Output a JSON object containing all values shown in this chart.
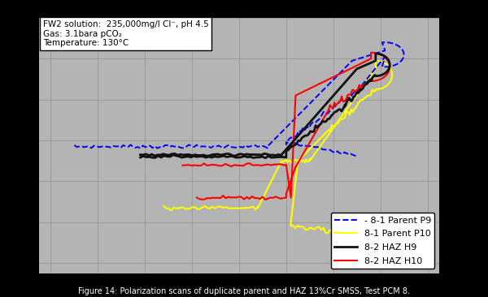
{
  "title": "Figure 14: Polarization scans of duplicate parent and HAZ 13%Cr SMSS, Test PCM 8.",
  "annotation_text": "FW2 solution:  235,000mg/l Cl⁻, pH 4.5\nGas: 3.1bara pCO₂\nTemperature: 130°C",
  "plot_bg_color": "#b4b4b4",
  "outer_bg_color": "#000000",
  "grid_color": "#999999",
  "figsize": [
    6.0,
    3.66
  ],
  "dpi": 100,
  "colors": {
    "P9": "#0000ff",
    "P10": "#ffff00",
    "H9": "#111111",
    "H10": "#ff0000"
  }
}
